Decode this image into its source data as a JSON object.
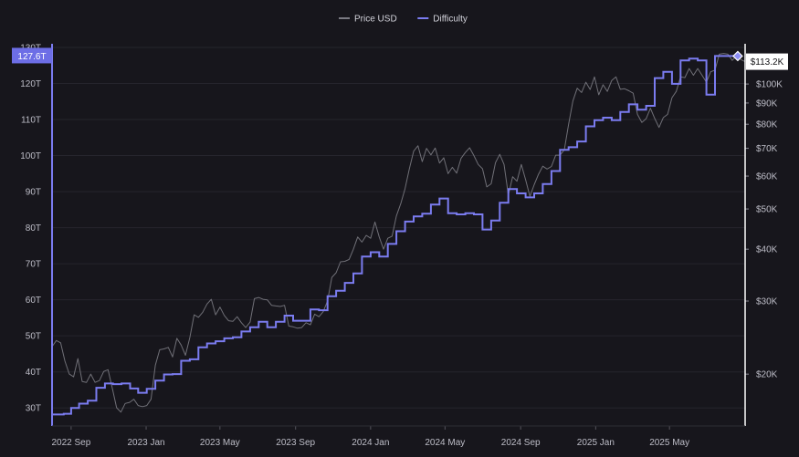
{
  "chart_data": {
    "type": "line",
    "title": "",
    "legend": {
      "placement": "top-center",
      "entries": [
        {
          "name": "Price USD",
          "color": "#7a7a82"
        },
        {
          "name": "Difficulty",
          "color": "#7b7cf0"
        }
      ]
    },
    "x_ticks": [
      "2022 Sep",
      "2023 Jan",
      "2023 May",
      "2023 Sep",
      "2024 Jan",
      "2024 May",
      "2024 Sep",
      "2025 Jan",
      "2025 May"
    ],
    "x_range": [
      "2022-08-01",
      "2025-09-01"
    ],
    "y_left": {
      "label": "",
      "ticks": [
        "30T",
        "40T",
        "50T",
        "60T",
        "70T",
        "80T",
        "90T",
        "100T",
        "110T",
        "120T",
        "130T"
      ],
      "range": [
        25,
        131
      ],
      "unit": "T"
    },
    "y_right": {
      "label": "",
      "scale": "log",
      "ticks": [
        {
          "label": "$20K",
          "value": 20000
        },
        {
          "label": "$30K",
          "value": 30000
        },
        {
          "label": "$40K",
          "value": 40000
        },
        {
          "label": "$50K",
          "value": 50000
        },
        {
          "label": "$60K",
          "value": 60000
        },
        {
          "label": "$70K",
          "value": 70000
        },
        {
          "label": "$80K",
          "value": 80000
        },
        {
          "label": "$90K",
          "value": 90000
        },
        {
          "label": "$100K",
          "value": 100000
        }
      ],
      "range": [
        15000,
        125000
      ]
    },
    "current_labels": {
      "difficulty": "127.6T",
      "price": "$113.2K"
    },
    "grid": true,
    "series": [
      {
        "name": "Difficulty",
        "axis": "left",
        "color": "#7b7cf0",
        "step": true,
        "points": [
          [
            "2022-08-01",
            28.2
          ],
          [
            "2022-08-20",
            28.4
          ],
          [
            "2022-09-01",
            30.0
          ],
          [
            "2022-09-14",
            31.2
          ],
          [
            "2022-09-28",
            32.0
          ],
          [
            "2022-10-12",
            35.6
          ],
          [
            "2022-10-26",
            36.8
          ],
          [
            "2022-11-08",
            36.6
          ],
          [
            "2022-11-22",
            36.8
          ],
          [
            "2022-12-06",
            35.4
          ],
          [
            "2022-12-19",
            34.2
          ],
          [
            "2023-01-02",
            35.3
          ],
          [
            "2023-01-16",
            37.6
          ],
          [
            "2023-01-30",
            39.3
          ],
          [
            "2023-02-13",
            39.4
          ],
          [
            "2023-02-27",
            43.1
          ],
          [
            "2023-03-13",
            43.5
          ],
          [
            "2023-03-27",
            46.8
          ],
          [
            "2023-04-10",
            47.9
          ],
          [
            "2023-04-24",
            48.5
          ],
          [
            "2023-05-08",
            49.3
          ],
          [
            "2023-05-22",
            49.6
          ],
          [
            "2023-06-05",
            51.2
          ],
          [
            "2023-06-19",
            52.4
          ],
          [
            "2023-07-03",
            53.9
          ],
          [
            "2023-07-17",
            52.4
          ],
          [
            "2023-07-31",
            53.9
          ],
          [
            "2023-08-14",
            55.6
          ],
          [
            "2023-08-28",
            54.2
          ],
          [
            "2023-09-11",
            54.2
          ],
          [
            "2023-09-25",
            57.3
          ],
          [
            "2023-10-09",
            57.1
          ],
          [
            "2023-10-23",
            61.0
          ],
          [
            "2023-11-06",
            62.5
          ],
          [
            "2023-11-20",
            64.7
          ],
          [
            "2023-12-04",
            67.3
          ],
          [
            "2023-12-18",
            72.0
          ],
          [
            "2024-01-01",
            73.2
          ],
          [
            "2024-01-15",
            72.0
          ],
          [
            "2024-01-29",
            75.5
          ],
          [
            "2024-02-12",
            79.0
          ],
          [
            "2024-02-26",
            81.7
          ],
          [
            "2024-03-11",
            83.1
          ],
          [
            "2024-03-25",
            83.9
          ],
          [
            "2024-04-08",
            86.4
          ],
          [
            "2024-04-22",
            88.1
          ],
          [
            "2024-05-06",
            84.0
          ],
          [
            "2024-05-20",
            83.7
          ],
          [
            "2024-06-03",
            84.0
          ],
          [
            "2024-06-17",
            83.7
          ],
          [
            "2024-07-01",
            79.5
          ],
          [
            "2024-07-15",
            82.0
          ],
          [
            "2024-07-29",
            86.9
          ],
          [
            "2024-08-12",
            90.7
          ],
          [
            "2024-08-26",
            89.5
          ],
          [
            "2024-09-09",
            88.4
          ],
          [
            "2024-09-23",
            89.5
          ],
          [
            "2024-10-07",
            92.1
          ],
          [
            "2024-10-21",
            95.7
          ],
          [
            "2024-11-04",
            101.6
          ],
          [
            "2024-11-18",
            102.3
          ],
          [
            "2024-12-02",
            103.9
          ],
          [
            "2024-12-16",
            108.1
          ],
          [
            "2024-12-30",
            109.8
          ],
          [
            "2025-01-13",
            110.5
          ],
          [
            "2025-01-27",
            109.8
          ],
          [
            "2025-02-10",
            112.1
          ],
          [
            "2025-02-24",
            114.2
          ],
          [
            "2025-03-10",
            112.7
          ],
          [
            "2025-03-24",
            113.8
          ],
          [
            "2025-04-07",
            121.5
          ],
          [
            "2025-04-21",
            123.2
          ],
          [
            "2025-05-05",
            119.9
          ],
          [
            "2025-05-19",
            126.4
          ],
          [
            "2025-06-02",
            126.9
          ],
          [
            "2025-06-16",
            126.4
          ],
          [
            "2025-06-30",
            116.9
          ],
          [
            "2025-07-14",
            127.6
          ],
          [
            "2025-07-28",
            127.6
          ],
          [
            "2025-08-20",
            127.6
          ]
        ]
      },
      {
        "name": "Price USD",
        "axis": "right",
        "color": "#7a7a82",
        "points": [
          [
            "2022-08-01",
            23300
          ],
          [
            "2022-08-08",
            24100
          ],
          [
            "2022-08-15",
            23800
          ],
          [
            "2022-08-22",
            21500
          ],
          [
            "2022-08-29",
            20000
          ],
          [
            "2022-09-05",
            19700
          ],
          [
            "2022-09-12",
            21800
          ],
          [
            "2022-09-19",
            19200
          ],
          [
            "2022-09-26",
            19100
          ],
          [
            "2022-10-03",
            20000
          ],
          [
            "2022-10-10",
            19100
          ],
          [
            "2022-10-17",
            19300
          ],
          [
            "2022-10-24",
            20300
          ],
          [
            "2022-10-31",
            20500
          ],
          [
            "2022-11-07",
            18500
          ],
          [
            "2022-11-14",
            16600
          ],
          [
            "2022-11-21",
            16200
          ],
          [
            "2022-11-28",
            17000
          ],
          [
            "2022-12-05",
            17100
          ],
          [
            "2022-12-12",
            17400
          ],
          [
            "2022-12-19",
            16800
          ],
          [
            "2022-12-26",
            16700
          ],
          [
            "2023-01-02",
            16800
          ],
          [
            "2023-01-09",
            17400
          ],
          [
            "2023-01-16",
            21000
          ],
          [
            "2023-01-23",
            22900
          ],
          [
            "2023-01-30",
            23000
          ],
          [
            "2023-02-06",
            23200
          ],
          [
            "2023-02-13",
            22000
          ],
          [
            "2023-02-20",
            24400
          ],
          [
            "2023-02-27",
            23500
          ],
          [
            "2023-03-06",
            22200
          ],
          [
            "2023-03-13",
            24500
          ],
          [
            "2023-03-20",
            27800
          ],
          [
            "2023-03-27",
            27400
          ],
          [
            "2023-04-03",
            28200
          ],
          [
            "2023-04-10",
            29500
          ],
          [
            "2023-04-17",
            30300
          ],
          [
            "2023-04-24",
            27800
          ],
          [
            "2023-05-01",
            29000
          ],
          [
            "2023-05-08",
            27700
          ],
          [
            "2023-05-15",
            26900
          ],
          [
            "2023-05-22",
            26800
          ],
          [
            "2023-05-29",
            27500
          ],
          [
            "2023-06-05",
            26600
          ],
          [
            "2023-06-12",
            25900
          ],
          [
            "2023-06-19",
            26700
          ],
          [
            "2023-06-26",
            30400
          ],
          [
            "2023-07-03",
            30600
          ],
          [
            "2023-07-10",
            30300
          ],
          [
            "2023-07-17",
            30200
          ],
          [
            "2023-07-24",
            29300
          ],
          [
            "2023-07-31",
            29200
          ],
          [
            "2023-08-07",
            29100
          ],
          [
            "2023-08-14",
            29300
          ],
          [
            "2023-08-21",
            26100
          ],
          [
            "2023-08-28",
            26000
          ],
          [
            "2023-09-04",
            25800
          ],
          [
            "2023-09-11",
            25900
          ],
          [
            "2023-09-18",
            26600
          ],
          [
            "2023-09-25",
            26300
          ],
          [
            "2023-10-02",
            27900
          ],
          [
            "2023-10-09",
            27500
          ],
          [
            "2023-10-16",
            28300
          ],
          [
            "2023-10-23",
            30000
          ],
          [
            "2023-10-30",
            34200
          ],
          [
            "2023-11-06",
            35100
          ],
          [
            "2023-11-13",
            37300
          ],
          [
            "2023-11-20",
            37400
          ],
          [
            "2023-11-27",
            37800
          ],
          [
            "2023-12-04",
            40000
          ],
          [
            "2023-12-11",
            42800
          ],
          [
            "2023-12-18",
            41600
          ],
          [
            "2023-12-25",
            43200
          ],
          [
            "2024-01-01",
            42500
          ],
          [
            "2024-01-08",
            46500
          ],
          [
            "2024-01-15",
            42800
          ],
          [
            "2024-01-22",
            40000
          ],
          [
            "2024-01-29",
            42500
          ],
          [
            "2024-02-05",
            43000
          ],
          [
            "2024-02-12",
            48100
          ],
          [
            "2024-02-19",
            51500
          ],
          [
            "2024-02-26",
            56000
          ],
          [
            "2024-03-04",
            62500
          ],
          [
            "2024-03-11",
            68900
          ],
          [
            "2024-03-18",
            71000
          ],
          [
            "2024-03-25",
            65000
          ],
          [
            "2024-04-01",
            70000
          ],
          [
            "2024-04-08",
            67500
          ],
          [
            "2024-04-15",
            70100
          ],
          [
            "2024-04-22",
            64500
          ],
          [
            "2024-04-29",
            66400
          ],
          [
            "2024-05-06",
            60800
          ],
          [
            "2024-05-13",
            63000
          ],
          [
            "2024-05-20",
            61000
          ],
          [
            "2024-05-27",
            66200
          ],
          [
            "2024-06-03",
            68400
          ],
          [
            "2024-06-10",
            70200
          ],
          [
            "2024-06-17",
            67200
          ],
          [
            "2024-06-24",
            64000
          ],
          [
            "2024-07-01",
            62500
          ],
          [
            "2024-07-08",
            56500
          ],
          [
            "2024-07-15",
            57500
          ],
          [
            "2024-07-22",
            64600
          ],
          [
            "2024-07-29",
            67700
          ],
          [
            "2024-08-05",
            64000
          ],
          [
            "2024-08-12",
            54000
          ],
          [
            "2024-08-19",
            59800
          ],
          [
            "2024-08-26",
            58300
          ],
          [
            "2024-09-02",
            64000
          ],
          [
            "2024-09-09",
            58800
          ],
          [
            "2024-09-16",
            53600
          ],
          [
            "2024-09-23",
            57200
          ],
          [
            "2024-09-30",
            60600
          ],
          [
            "2024-10-07",
            63400
          ],
          [
            "2024-10-14",
            62400
          ],
          [
            "2024-10-21",
            63300
          ],
          [
            "2024-10-28",
            67400
          ],
          [
            "2024-11-04",
            67400
          ],
          [
            "2024-11-11",
            69400
          ],
          [
            "2024-11-18",
            80000
          ],
          [
            "2024-11-25",
            91000
          ],
          [
            "2024-12-02",
            97700
          ],
          [
            "2024-12-09",
            95400
          ],
          [
            "2024-12-16",
            101000
          ],
          [
            "2024-12-23",
            97000
          ],
          [
            "2024-12-30",
            104000
          ],
          [
            "2025-01-06",
            94200
          ],
          [
            "2025-01-13",
            99600
          ],
          [
            "2025-01-20",
            96000
          ],
          [
            "2025-01-27",
            102000
          ],
          [
            "2025-02-03",
            104000
          ],
          [
            "2025-02-10",
            97100
          ],
          [
            "2025-02-17",
            97400
          ],
          [
            "2025-02-24",
            96300
          ],
          [
            "2025-03-03",
            95000
          ],
          [
            "2025-03-10",
            84500
          ],
          [
            "2025-03-17",
            80800
          ],
          [
            "2025-03-24",
            82500
          ],
          [
            "2025-03-31",
            87400
          ],
          [
            "2025-04-07",
            82600
          ],
          [
            "2025-04-14",
            78600
          ],
          [
            "2025-04-21",
            83000
          ],
          [
            "2025-04-28",
            84500
          ],
          [
            "2025-05-05",
            92700
          ],
          [
            "2025-05-12",
            96000
          ],
          [
            "2025-05-19",
            104000
          ],
          [
            "2025-05-26",
            103600
          ],
          [
            "2025-06-02",
            109000
          ],
          [
            "2025-06-09",
            105000
          ],
          [
            "2025-06-16",
            109000
          ],
          [
            "2025-06-23",
            104900
          ],
          [
            "2025-06-30",
            101000
          ],
          [
            "2025-07-07",
            107000
          ],
          [
            "2025-07-14",
            108000
          ],
          [
            "2025-07-21",
            118000
          ],
          [
            "2025-07-28",
            118500
          ],
          [
            "2025-08-04",
            118000
          ],
          [
            "2025-08-11",
            114000
          ],
          [
            "2025-08-18",
            117000
          ],
          [
            "2025-08-25",
            114500
          ],
          [
            "2025-09-01",
            113200
          ]
        ]
      }
    ]
  }
}
